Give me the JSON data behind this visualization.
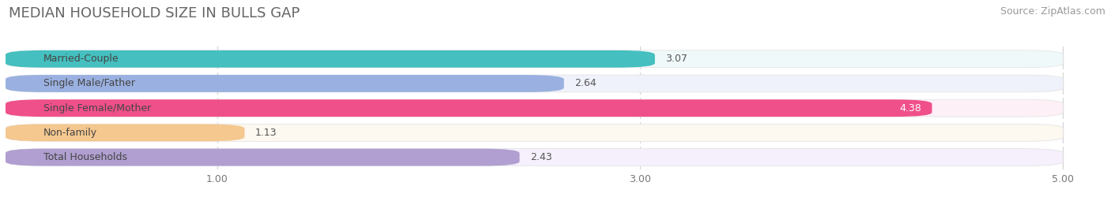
{
  "title": "MEDIAN HOUSEHOLD SIZE IN BULLS GAP",
  "source": "Source: ZipAtlas.com",
  "categories": [
    "Married-Couple",
    "Single Male/Father",
    "Single Female/Mother",
    "Non-family",
    "Total Households"
  ],
  "values": [
    3.07,
    2.64,
    4.38,
    1.13,
    2.43
  ],
  "bar_colors": [
    "#45bfbf",
    "#9ab0e0",
    "#f0508a",
    "#f5c890",
    "#b09fd0"
  ],
  "bar_bg_colors": [
    "#f0f9f9",
    "#f0f2fb",
    "#fdf0f6",
    "#fdf8f0",
    "#f5f0fc"
  ],
  "circle_colors": [
    "#45bfbf",
    "#9ab0e0",
    "#f0508a",
    "#f5c890",
    "#b09fd0"
  ],
  "xlim_min": 0,
  "xlim_max": 5.2,
  "xaxis_min": 0,
  "xaxis_max": 5.0,
  "xticks": [
    1.0,
    3.0,
    5.0
  ],
  "xtick_labels": [
    "1.00",
    "3.00",
    "5.00"
  ],
  "title_fontsize": 13,
  "source_fontsize": 9,
  "label_fontsize": 9,
  "value_fontsize": 9,
  "background_color": "#ffffff",
  "grid_color": "#d8d8d8",
  "bar_sep_color": "#ffffff"
}
